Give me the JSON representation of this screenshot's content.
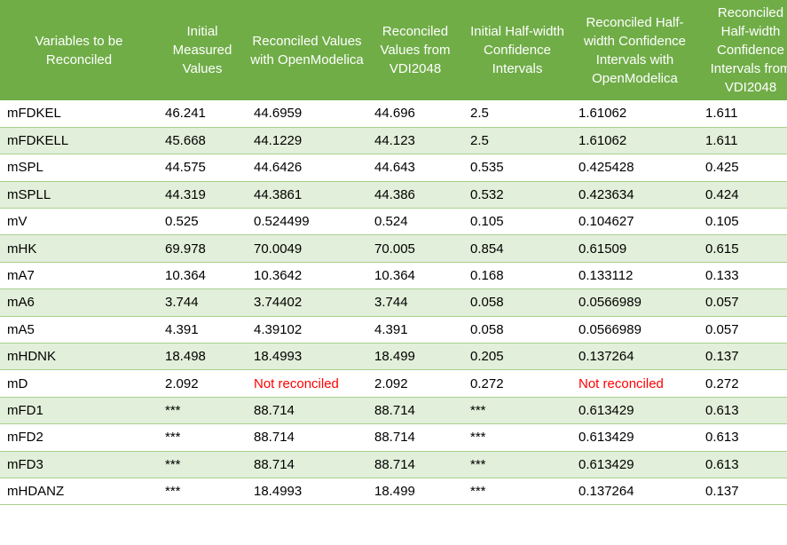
{
  "table": {
    "header": [
      "Variables to be Reconciled",
      "Initial Measured Values",
      "Reconciled Values with OpenModelica",
      "Reconciled Values from VDI2048",
      "Initial Half-width Confidence Intervals",
      "Reconciled Half-width Confidence Intervals with OpenModelica",
      "Reconciled Half-width Confidence Intervals from VDI2048"
    ],
    "rows": [
      [
        "mFDKEL",
        "46.241",
        "44.6959",
        "44.696",
        "2.5",
        "1.61062",
        "1.611"
      ],
      [
        "mFDKELL",
        "45.668",
        "44.1229",
        "44.123",
        "2.5",
        "1.61062",
        "1.611"
      ],
      [
        "mSPL",
        "44.575",
        "44.6426",
        "44.643",
        "0.535",
        "0.425428",
        "0.425"
      ],
      [
        "mSPLL",
        "44.319",
        "44.3861",
        "44.386",
        "0.532",
        "0.423634",
        "0.424"
      ],
      [
        "mV",
        "0.525",
        "0.524499",
        "0.524",
        "0.105",
        "0.104627",
        "0.105"
      ],
      [
        "mHK",
        "69.978",
        "70.0049",
        "70.005",
        "0.854",
        "0.61509",
        "0.615"
      ],
      [
        "mA7",
        "10.364",
        "10.3642",
        "10.364",
        "0.168",
        "0.133112",
        "0.133"
      ],
      [
        "mA6",
        "3.744",
        "3.74402",
        "3.744",
        "0.058",
        "0.0566989",
        "0.057"
      ],
      [
        "mA5",
        "4.391",
        "4.39102",
        "4.391",
        "0.058",
        "0.0566989",
        "0.057"
      ],
      [
        "mHDNK",
        "18.498",
        "18.4993",
        "18.499",
        "0.205",
        "0.137264",
        "0.137"
      ],
      [
        "mD",
        "2.092",
        "Not reconciled",
        "2.092",
        "0.272",
        "Not reconciled",
        "0.272"
      ],
      [
        "mFD1",
        "***",
        "88.714",
        "88.714",
        "***",
        "0.613429",
        "0.613"
      ],
      [
        "mFD2",
        "***",
        "88.714",
        "88.714",
        "***",
        "0.613429",
        "0.613"
      ],
      [
        "mFD3",
        "***",
        "88.714",
        "88.714",
        "***",
        "0.613429",
        "0.613"
      ],
      [
        "mHDANZ",
        "***",
        "18.4993",
        "18.499",
        "***",
        "0.137264",
        "0.137"
      ]
    ]
  }
}
